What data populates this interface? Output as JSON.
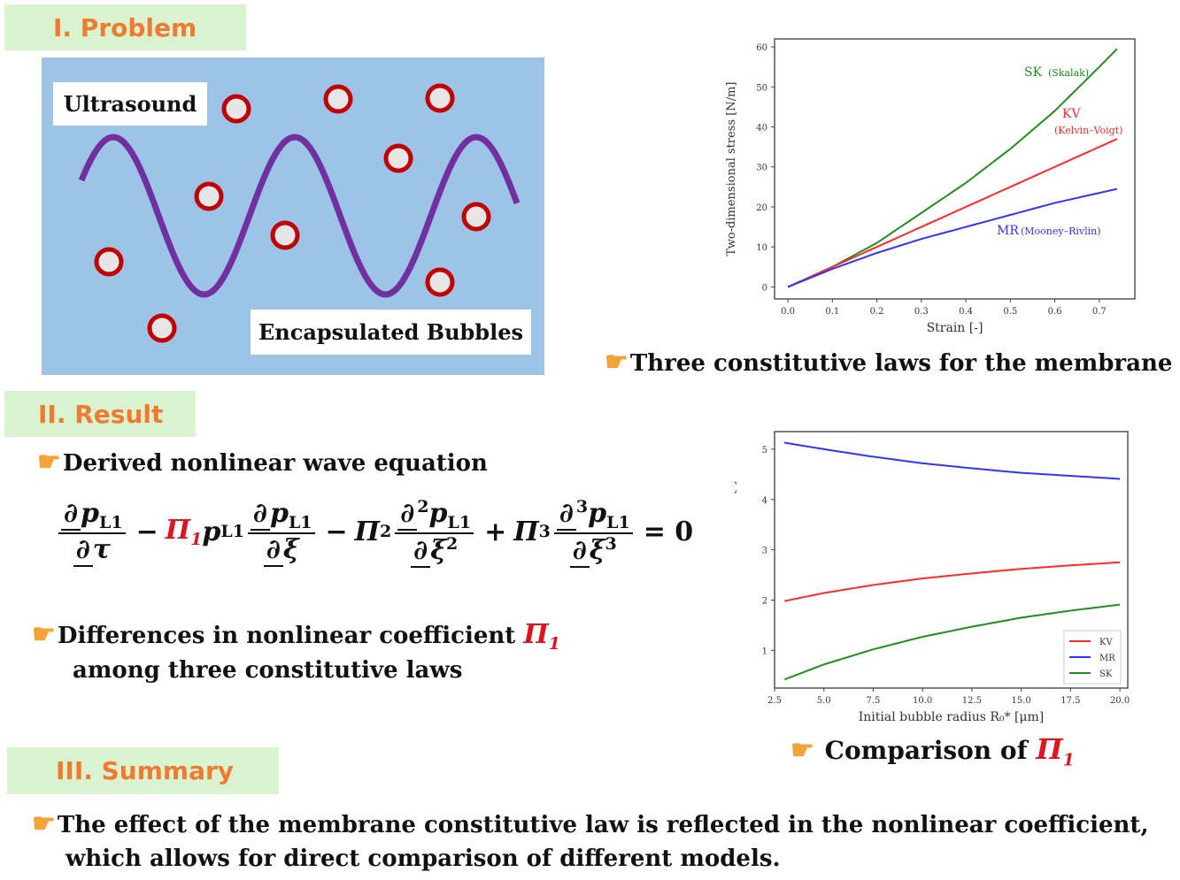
{
  "sections": {
    "problem": "I. Problem",
    "result": "II. Result",
    "summary": "III. Summary"
  },
  "problem": {
    "ultrasound_label": "Ultrasound",
    "bubbles_label": "Encapsulated Bubbles"
  },
  "captions": {
    "laws": "Three constitutive laws for the membrane",
    "comparison": "Comparison of ",
    "pi1": "Π",
    "pi1_sub": "1"
  },
  "result": {
    "derived": "Derived nonlinear wave equation",
    "differences": "Differences in nonlinear coefficient ",
    "differences_line2": "among three constitutive laws"
  },
  "equation": {
    "p": "p",
    "sub": "L1",
    "d": "∂",
    "tau": "τ",
    "xi": "ξ",
    "minus": "−",
    "plus": "+",
    "pi": "Π",
    "n1": "1",
    "n2": "2",
    "n3": "3",
    "eq": "= 0"
  },
  "summary": {
    "line1": "The effect of the membrane constitutive law is reflected in the nonlinear coefficient,",
    "line2": "which allows for direct comparison of different models."
  },
  "icons": {
    "hand": "☛"
  },
  "colors": {
    "SK": "#228b22",
    "KV": "#ff2a2a",
    "MR": "#3333ff",
    "wave": "#7030a0",
    "bubble": "#c00000",
    "panel": "#9dc3e6"
  },
  "chart_data": [
    {
      "type": "line",
      "title": "",
      "xlabel": "Strain [-]",
      "ylabel": "Two-dimensional stress [N/m]",
      "xlim": [
        -0.03,
        0.78
      ],
      "ylim": [
        -3,
        62
      ],
      "xticks": [
        "0.0",
        "0.1",
        "0.2",
        "0.3",
        "0.4",
        "0.5",
        "0.6",
        "0.7"
      ],
      "yticks": [
        "0",
        "10",
        "20",
        "30",
        "40",
        "50",
        "60"
      ],
      "x": [
        0,
        0.1,
        0.2,
        0.3,
        0.4,
        0.5,
        0.6,
        0.7,
        0.74
      ],
      "series": [
        {
          "name": "SK",
          "label": "SK",
          "sublabel": "(Skalak)",
          "values": [
            0,
            5,
            11,
            18.5,
            26,
            34.5,
            44,
            55,
            59.5
          ]
        },
        {
          "name": "KV",
          "label": "KV",
          "sublabel": "(Kelvin–Voigt)",
          "values": [
            0,
            5,
            10,
            15,
            20,
            25,
            30,
            35,
            37
          ]
        },
        {
          "name": "MR",
          "label": "MR",
          "sublabel": "(Mooney–Rivlin)",
          "values": [
            0,
            4.5,
            8.5,
            12,
            15,
            18,
            21,
            23.5,
            24.5
          ]
        }
      ]
    },
    {
      "type": "line",
      "title": "",
      "xlabel": "Initial bubble radius R₀* [μm]",
      "ylabel": "Nonlinear coefficient Π₁ [-]",
      "xlim": [
        2.5,
        20.4
      ],
      "ylim": [
        0.25,
        5.35
      ],
      "xticks": [
        "2.5",
        "5.0",
        "7.5",
        "10.0",
        "12.5",
        "15.0",
        "17.5",
        "20.0"
      ],
      "yticks": [
        "1",
        "2",
        "3",
        "4",
        "5"
      ],
      "legend": "bottom-right",
      "x": [
        3,
        5,
        7.5,
        10,
        12.5,
        15,
        17.5,
        20
      ],
      "series": [
        {
          "name": "KV",
          "values": [
            1.98,
            2.14,
            2.3,
            2.43,
            2.53,
            2.62,
            2.69,
            2.75
          ]
        },
        {
          "name": "MR",
          "values": [
            5.13,
            5.0,
            4.85,
            4.72,
            4.62,
            4.53,
            4.47,
            4.41
          ]
        },
        {
          "name": "SK",
          "values": [
            0.42,
            0.72,
            1.02,
            1.27,
            1.47,
            1.65,
            1.79,
            1.91
          ]
        }
      ]
    }
  ]
}
